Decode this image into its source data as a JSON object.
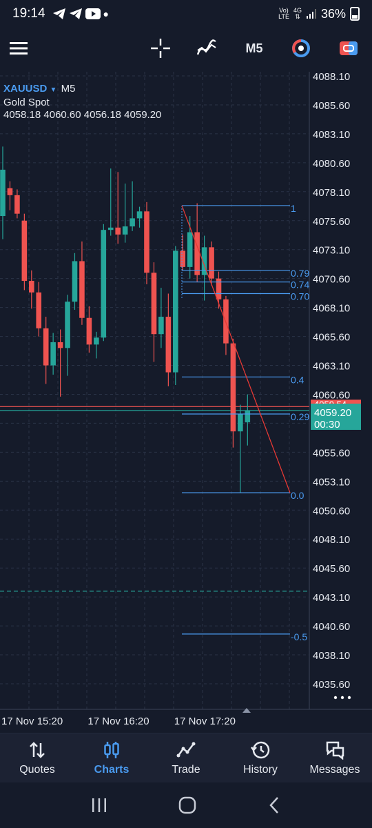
{
  "status": {
    "time": "19:14",
    "net_top": "Vo)",
    "net_mid": "LTE",
    "net_gen": "4G",
    "battery": "36%"
  },
  "toolbar": {
    "timeframe": "M5"
  },
  "chart": {
    "symbol": "XAUUSD",
    "timeframe": "M5",
    "name": "Gold Spot",
    "ohlc": "4058.18 4060.60 4056.18 4059.20",
    "current_price": "4059.20",
    "countdown": "00:30",
    "partial_label": "4059.54",
    "colors": {
      "bull": "#26a69a",
      "bear": "#ef5350",
      "fib": "#4a9bf0",
      "trend": "#e53935",
      "background": "#151b2a"
    }
  },
  "chart_data": {
    "type": "candlestick",
    "symbol": "XAUUSD",
    "y_ticks": [
      "4088.10",
      "4085.60",
      "4083.10",
      "4080.60",
      "4078.10",
      "4075.60",
      "4073.10",
      "4070.60",
      "4068.10",
      "4065.60",
      "4063.10",
      "4060.60",
      "4058.10",
      "4055.60",
      "4053.10",
      "4050.60",
      "4048.10",
      "4045.60",
      "4043.10",
      "4040.60",
      "4038.10",
      "4035.60"
    ],
    "ylim": [
      4034.0,
      4088.3
    ],
    "x_ticks": [
      {
        "label": "17 Nov 15:20",
        "index": 0
      },
      {
        "label": "17 Nov 16:20",
        "index": 12
      },
      {
        "label": "17 Nov 17:20",
        "index": 24
      }
    ],
    "candles": [
      {
        "o": 4076.0,
        "h": 4082.0,
        "l": 4074.0,
        "c": 4080.0
      },
      {
        "o": 4078.4,
        "h": 4079.0,
        "l": 4076.5,
        "c": 4077.8
      },
      {
        "o": 4077.8,
        "h": 4078.3,
        "l": 4075.8,
        "c": 4076.2
      },
      {
        "o": 4075.6,
        "h": 4076.2,
        "l": 4069.6,
        "c": 4070.4
      },
      {
        "o": 4070.4,
        "h": 4071.3,
        "l": 4068.0,
        "c": 4069.4
      },
      {
        "o": 4069.4,
        "h": 4070.3,
        "l": 4065.6,
        "c": 4066.3
      },
      {
        "o": 4066.3,
        "h": 4067.3,
        "l": 4061.5,
        "c": 4063.1
      },
      {
        "o": 4063.1,
        "h": 4065.9,
        "l": 4062.3,
        "c": 4065.1
      },
      {
        "o": 4065.1,
        "h": 4066.2,
        "l": 4060.4,
        "c": 4064.6
      },
      {
        "o": 4064.6,
        "h": 4069.2,
        "l": 4062.2,
        "c": 4068.6
      },
      {
        "o": 4068.6,
        "h": 4072.8,
        "l": 4067.9,
        "c": 4072.1
      },
      {
        "o": 4072.1,
        "h": 4073.8,
        "l": 4066.6,
        "c": 4067.2
      },
      {
        "o": 4067.2,
        "h": 4068.2,
        "l": 4064.2,
        "c": 4064.9
      },
      {
        "o": 4064.9,
        "h": 4066.0,
        "l": 4063.7,
        "c": 4065.5
      },
      {
        "o": 4065.5,
        "h": 4075.3,
        "l": 4065.2,
        "c": 4074.8
      },
      {
        "o": 4074.8,
        "h": 4080.1,
        "l": 4074.3,
        "c": 4075.0
      },
      {
        "o": 4075.0,
        "h": 4079.8,
        "l": 4073.6,
        "c": 4074.4
      },
      {
        "o": 4074.4,
        "h": 4078.8,
        "l": 4073.7,
        "c": 4075.1
      },
      {
        "o": 4075.1,
        "h": 4079.0,
        "l": 4074.7,
        "c": 4075.8
      },
      {
        "o": 4075.8,
        "h": 4076.8,
        "l": 4075.0,
        "c": 4076.4
      },
      {
        "o": 4076.4,
        "h": 4077.2,
        "l": 4070.1,
        "c": 4071.1
      },
      {
        "o": 4071.1,
        "h": 4072.0,
        "l": 4063.4,
        "c": 4065.8
      },
      {
        "o": 4065.8,
        "h": 4069.8,
        "l": 4064.6,
        "c": 4067.3
      },
      {
        "o": 4067.3,
        "h": 4069.3,
        "l": 4061.3,
        "c": 4062.5
      },
      {
        "o": 4062.5,
        "h": 4073.4,
        "l": 4061.4,
        "c": 4073.0
      },
      {
        "o": 4073.0,
        "h": 4074.4,
        "l": 4071.3,
        "c": 4071.6
      },
      {
        "o": 4071.6,
        "h": 4076.0,
        "l": 4070.6,
        "c": 4074.6
      },
      {
        "o": 4074.6,
        "h": 4077.1,
        "l": 4070.3,
        "c": 4070.9
      },
      {
        "o": 4070.9,
        "h": 4074.3,
        "l": 4068.7,
        "c": 4073.3
      },
      {
        "o": 4073.3,
        "h": 4073.8,
        "l": 4070.0,
        "c": 4070.6
      },
      {
        "o": 4070.6,
        "h": 4071.2,
        "l": 4068.0,
        "c": 4068.8
      },
      {
        "o": 4068.8,
        "h": 4069.1,
        "l": 4064.0,
        "c": 4065.0
      },
      {
        "o": 4065.0,
        "h": 4065.4,
        "l": 4056.0,
        "c": 4057.4
      },
      {
        "o": 4057.4,
        "h": 4059.7,
        "l": 4052.1,
        "c": 4058.9
      },
      {
        "o": 4058.18,
        "h": 4060.6,
        "l": 4056.18,
        "c": 4059.2
      }
    ],
    "fibonacci": [
      {
        "label": "1",
        "price": 4076.9
      },
      {
        "label": "0.79",
        "price": 4071.3
      },
      {
        "label": "0.74",
        "price": 4070.3
      },
      {
        "label": "0.70",
        "price": 4069.3
      },
      {
        "label": "0.4",
        "price": 4062.1
      },
      {
        "label": "0.29",
        "price": 4058.9
      },
      {
        "label": "0.0",
        "price": 4052.1
      },
      {
        "label": "-0.5",
        "price": 4039.9
      }
    ],
    "trendline": {
      "from": {
        "index": 26,
        "price": 4076.9
      },
      "to": {
        "index": 41.5,
        "price": 4052.1
      }
    },
    "horizontal_lines": [
      {
        "price": 4059.54,
        "color": "#ef5350"
      },
      {
        "price": 4059.2,
        "color": "#26a69a"
      },
      {
        "price": 4043.6,
        "color": "#26a69a",
        "dashed": true
      }
    ]
  }
}
